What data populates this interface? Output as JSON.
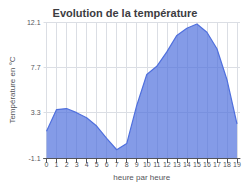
{
  "chart_data": {
    "type": "area",
    "title": "Evolution de la température",
    "xlabel": "heure par heure",
    "ylabel": "Température en °C",
    "x": [
      0,
      1,
      2,
      3,
      4,
      5,
      6,
      7,
      8,
      9,
      10,
      11,
      12,
      13,
      14,
      15,
      16,
      17,
      18,
      19
    ],
    "values": [
      1.5,
      3.6,
      3.7,
      3.3,
      2.8,
      2.0,
      0.8,
      -0.3,
      0.3,
      4.0,
      7.0,
      7.8,
      9.2,
      10.8,
      11.5,
      11.9,
      11.1,
      9.5,
      6.5,
      2.2
    ],
    "xlim": [
      -0.3,
      19.3
    ],
    "ylim": [
      -1.1,
      12.1
    ],
    "xticks": [
      0,
      1,
      2,
      3,
      4,
      5,
      6,
      7,
      8,
      9,
      10,
      11,
      12,
      13,
      14,
      15,
      16,
      17,
      18,
      19
    ],
    "yticks": [
      -1.1,
      3.3,
      7.7,
      12.1
    ],
    "grid": true
  }
}
